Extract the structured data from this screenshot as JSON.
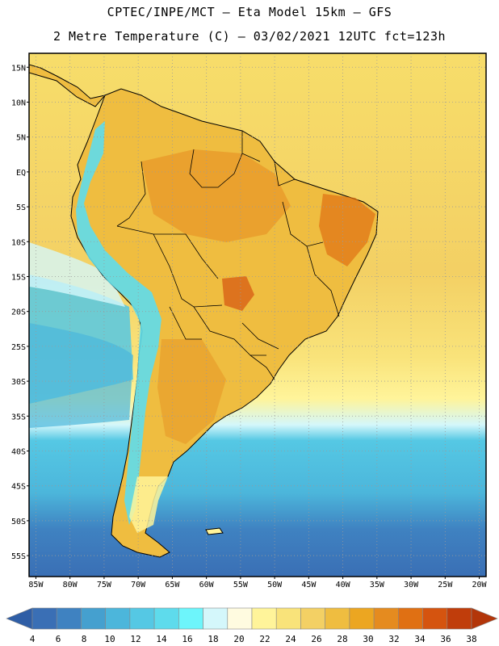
{
  "title_line1": "CPTEC/INPE/MCT –  Eta Model 15km – GFS",
  "title_line2": "2 Metre Temperature (C) – 03/02/2021 12UTC fct=123h",
  "lat_labels": [
    "15N",
    "10N",
    "5N",
    "EQ",
    "5S",
    "10S",
    "15S",
    "20S",
    "25S",
    "30S",
    "35S",
    "40S",
    "45S",
    "50S",
    "55S"
  ],
  "lon_labels": [
    "85W",
    "80W",
    "75W",
    "70W",
    "65W",
    "60W",
    "55W",
    "50W",
    "45W",
    "40W",
    "35W",
    "30W",
    "25W",
    "20W"
  ],
  "colorbar": {
    "ticks": [
      "4",
      "6",
      "8",
      "10",
      "12",
      "14",
      "16",
      "18",
      "20",
      "22",
      "24",
      "26",
      "28",
      "30",
      "32",
      "34",
      "36",
      "38"
    ],
    "colors": [
      "#3a6fb5",
      "#3f82c1",
      "#45a0cf",
      "#4cb6db",
      "#55c8e4",
      "#5edbec",
      "#6df5fb",
      "#d4f7fb",
      "#fffbe0",
      "#fff49a",
      "#f9e37a",
      "#f3d064",
      "#efbd40",
      "#eca621",
      "#e58b1f",
      "#e07013",
      "#d5540f",
      "#c03d0b"
    ],
    "low_end_color": "#2f5ea6",
    "high_end_color": "#b3360a"
  },
  "colors": {
    "ocean_north": "#f7dd6a",
    "ocean_sub": "#f3d064",
    "land_warm": "#efbd40",
    "land_hot": "#e58b1f",
    "land_hotter": "#e07013",
    "andes_cold": "#5edbec",
    "ocean_cool": "#55c8e4",
    "ocean_cold": "#45a0cf",
    "ocean_coldest": "#3a6fb5"
  }
}
